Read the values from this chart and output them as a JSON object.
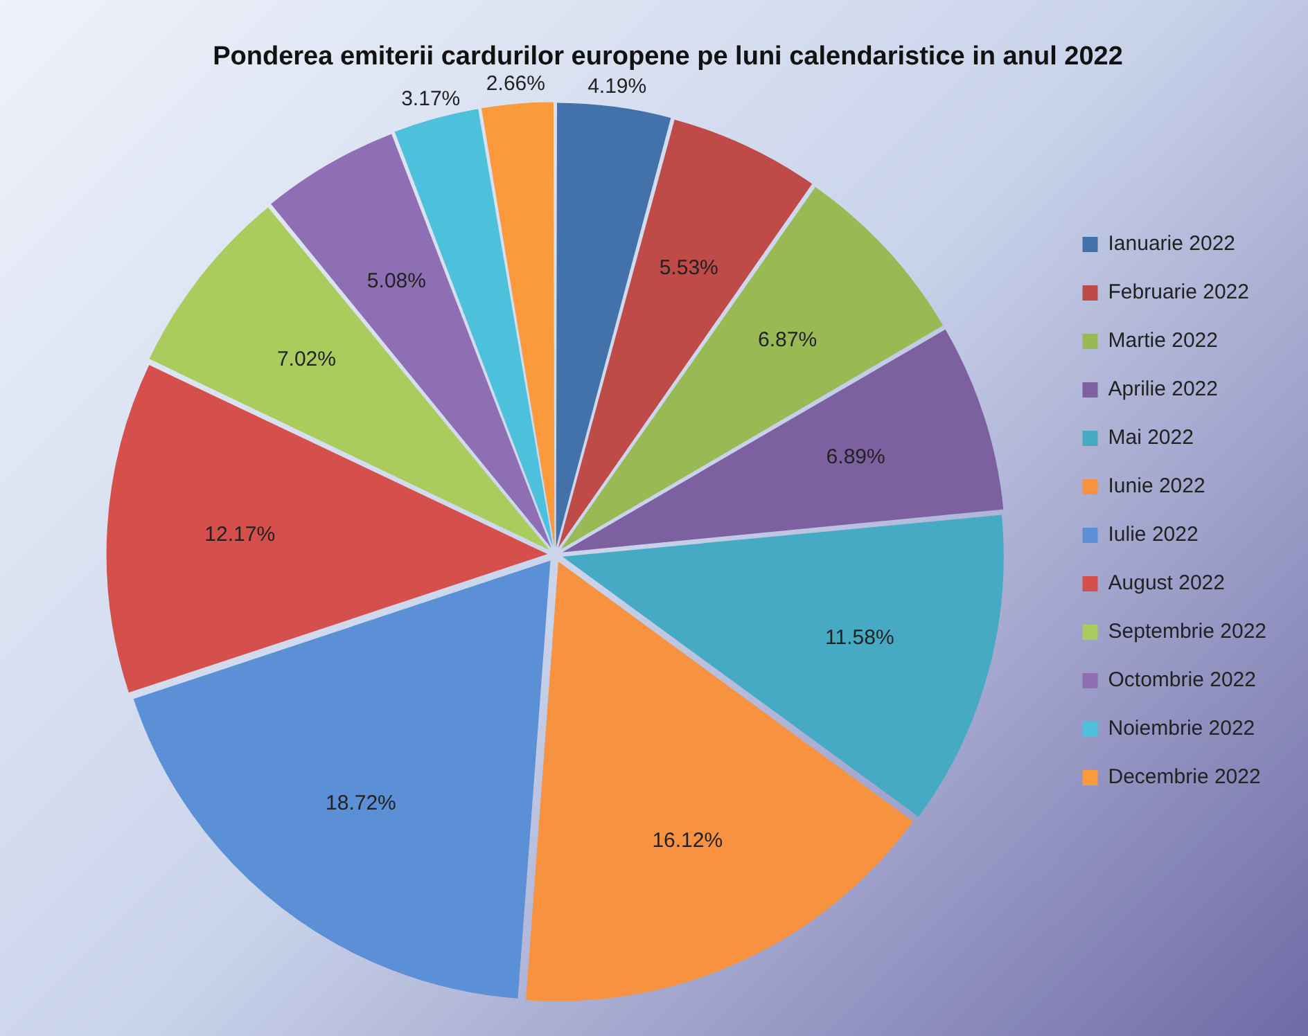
{
  "chart_data": {
    "type": "pie",
    "title": "Ponderea emiterii cardurilor europene pe luni calendaristice in anul 2022",
    "categories": [
      "Ianuarie 2022",
      "Februarie 2022",
      "Martie 2022",
      "Aprilie 2022",
      "Mai 2022",
      "Iunie 2022",
      "Iulie 2022",
      "August 2022",
      "Septembrie 2022",
      "Octombrie 2022",
      "Noiembrie 2022",
      "Decembrie 2022"
    ],
    "values": [
      4.19,
      5.53,
      6.87,
      6.89,
      11.58,
      16.12,
      18.72,
      12.17,
      7.02,
      5.08,
      3.17,
      2.66
    ],
    "value_labels": [
      "4.19%",
      "5.53%",
      "6.87%",
      "6.89%",
      "11.58%",
      "16.12%",
      "18.72%",
      "12.17%",
      "7.02%",
      "5.08%",
      "3.17%",
      "2.66%"
    ],
    "colors": [
      "#4372aa",
      "#be4b48",
      "#98b954",
      "#7d60a0",
      "#46aac5",
      "#f69240",
      "#5b8fd6",
      "#d5504c",
      "#aacc5c",
      "#8e6fb3",
      "#4dc0dc",
      "#fa9a3c"
    ],
    "legend": "right"
  }
}
